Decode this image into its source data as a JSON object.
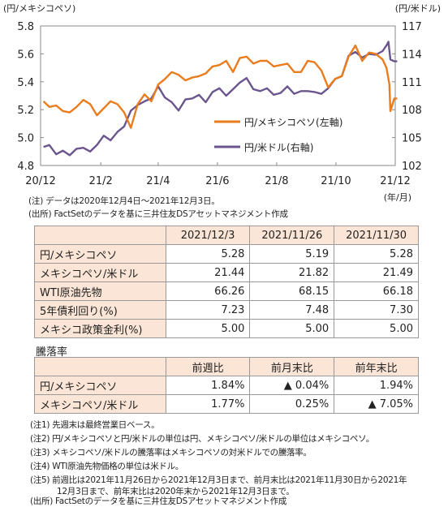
{
  "chart_data": {
    "type": "line",
    "x_axis": {
      "ticks": [
        "20/12",
        "21/2",
        "21/4",
        "21/6",
        "21/8",
        "21/10",
        "21/12"
      ],
      "unit_label": "(年/月)"
    },
    "y_left": {
      "label": "(円/メキシコペソ)",
      "range": [
        4.8,
        5.8
      ],
      "ticks": [
        "4.8",
        "5.0",
        "5.2",
        "5.4",
        "5.6",
        "5.8"
      ]
    },
    "y_right": {
      "label": "(円/米ドル)",
      "range": [
        102,
        117
      ],
      "ticks": [
        "102",
        "105",
        "108",
        "111",
        "114",
        "117"
      ]
    },
    "series": [
      {
        "name": "円/メキシコペソ(左軸)",
        "axis": "left",
        "color": "#e97d1e",
        "points": [
          [
            "2020-12-04",
            5.26
          ],
          [
            "2020-12-10",
            5.22
          ],
          [
            "2020-12-17",
            5.23
          ],
          [
            "2020-12-24",
            5.19
          ],
          [
            "2020-12-31",
            5.18
          ],
          [
            "2021-01-07",
            5.22
          ],
          [
            "2021-01-14",
            5.27
          ],
          [
            "2021-01-21",
            5.24
          ],
          [
            "2021-01-28",
            5.16
          ],
          [
            "2021-02-04",
            5.21
          ],
          [
            "2021-02-11",
            5.26
          ],
          [
            "2021-02-18",
            5.24
          ],
          [
            "2021-02-25",
            5.18
          ],
          [
            "2021-03-04",
            5.07
          ],
          [
            "2021-03-11",
            5.24
          ],
          [
            "2021-03-18",
            5.31
          ],
          [
            "2021-03-25",
            5.26
          ],
          [
            "2021-04-01",
            5.38
          ],
          [
            "2021-04-08",
            5.42
          ],
          [
            "2021-04-15",
            5.47
          ],
          [
            "2021-04-22",
            5.45
          ],
          [
            "2021-04-29",
            5.41
          ],
          [
            "2021-05-06",
            5.43
          ],
          [
            "2021-05-13",
            5.44
          ],
          [
            "2021-05-20",
            5.46
          ],
          [
            "2021-05-27",
            5.51
          ],
          [
            "2021-06-03",
            5.52
          ],
          [
            "2021-06-10",
            5.55
          ],
          [
            "2021-06-17",
            5.47
          ],
          [
            "2021-06-24",
            5.57
          ],
          [
            "2021-07-01",
            5.58
          ],
          [
            "2021-07-08",
            5.53
          ],
          [
            "2021-07-15",
            5.55
          ],
          [
            "2021-07-22",
            5.55
          ],
          [
            "2021-07-29",
            5.51
          ],
          [
            "2021-08-05",
            5.52
          ],
          [
            "2021-08-12",
            5.53
          ],
          [
            "2021-08-19",
            5.47
          ],
          [
            "2021-08-26",
            5.47
          ],
          [
            "2021-09-02",
            5.55
          ],
          [
            "2021-09-09",
            5.54
          ],
          [
            "2021-09-16",
            5.48
          ],
          [
            "2021-09-23",
            5.36
          ],
          [
            "2021-09-30",
            5.42
          ],
          [
            "2021-10-07",
            5.44
          ],
          [
            "2021-10-14",
            5.58
          ],
          [
            "2021-10-21",
            5.66
          ],
          [
            "2021-10-28",
            5.55
          ],
          [
            "2021-11-04",
            5.61
          ],
          [
            "2021-11-11",
            5.6
          ],
          [
            "2021-11-18",
            5.56
          ],
          [
            "2021-11-22",
            5.5
          ],
          [
            "2021-11-25",
            5.38
          ],
          [
            "2021-11-26",
            5.19
          ],
          [
            "2021-11-30",
            5.28
          ],
          [
            "2021-12-03",
            5.28
          ]
        ]
      },
      {
        "name": "円/米ドル(右軸)",
        "axis": "right",
        "color": "#6a558e",
        "points": [
          [
            "2020-12-04",
            104.0
          ],
          [
            "2020-12-10",
            104.2
          ],
          [
            "2020-12-17",
            103.2
          ],
          [
            "2020-12-24",
            103.6
          ],
          [
            "2020-12-31",
            103.1
          ],
          [
            "2021-01-07",
            103.8
          ],
          [
            "2021-01-14",
            103.9
          ],
          [
            "2021-01-21",
            103.5
          ],
          [
            "2021-01-28",
            104.2
          ],
          [
            "2021-02-04",
            105.2
          ],
          [
            "2021-02-11",
            104.7
          ],
          [
            "2021-02-18",
            105.6
          ],
          [
            "2021-02-25",
            106.2
          ],
          [
            "2021-03-04",
            107.9
          ],
          [
            "2021-03-11",
            108.5
          ],
          [
            "2021-03-18",
            108.9
          ],
          [
            "2021-03-25",
            109.2
          ],
          [
            "2021-04-01",
            110.5
          ],
          [
            "2021-04-08",
            109.3
          ],
          [
            "2021-04-15",
            108.8
          ],
          [
            "2021-04-22",
            107.9
          ],
          [
            "2021-04-29",
            109.1
          ],
          [
            "2021-05-06",
            109.2
          ],
          [
            "2021-05-13",
            109.6
          ],
          [
            "2021-05-20",
            108.8
          ],
          [
            "2021-05-27",
            109.9
          ],
          [
            "2021-06-03",
            110.3
          ],
          [
            "2021-06-10",
            109.5
          ],
          [
            "2021-06-17",
            110.2
          ],
          [
            "2021-06-24",
            110.9
          ],
          [
            "2021-07-01",
            111.4
          ],
          [
            "2021-07-08",
            110.2
          ],
          [
            "2021-07-15",
            110.0
          ],
          [
            "2021-07-22",
            110.3
          ],
          [
            "2021-07-29",
            109.6
          ],
          [
            "2021-08-05",
            109.8
          ],
          [
            "2021-08-12",
            110.5
          ],
          [
            "2021-08-19",
            109.7
          ],
          [
            "2021-08-26",
            110.0
          ],
          [
            "2021-09-02",
            110.0
          ],
          [
            "2021-09-09",
            109.9
          ],
          [
            "2021-09-16",
            109.7
          ],
          [
            "2021-09-23",
            110.3
          ],
          [
            "2021-09-30",
            111.3
          ],
          [
            "2021-10-07",
            111.6
          ],
          [
            "2021-10-14",
            113.8
          ],
          [
            "2021-10-21",
            114.2
          ],
          [
            "2021-10-28",
            113.6
          ],
          [
            "2021-11-04",
            114.0
          ],
          [
            "2021-11-11",
            113.9
          ],
          [
            "2021-11-18",
            114.3
          ],
          [
            "2021-11-22",
            114.9
          ],
          [
            "2021-11-24",
            115.3
          ],
          [
            "2021-11-26",
            113.4
          ],
          [
            "2021-11-30",
            113.2
          ],
          [
            "2021-12-03",
            113.2
          ]
        ]
      }
    ],
    "grid": false,
    "legend": "inside-right"
  },
  "chart_notes": [
    "(注) データは2020年12月4日～2021年12月3日。",
    "(出所) FactSetのデータを基に三井住友DSアセットマネジメント作成"
  ],
  "table1": {
    "headers": [
      "2021/12/3",
      "2021/11/26",
      "2021/11/30"
    ],
    "rows": [
      {
        "label": "円/メキシコペソ",
        "values": [
          "5.28",
          "5.19",
          "5.28"
        ]
      },
      {
        "label": "メキシコペソ/米ドル",
        "values": [
          "21.44",
          "21.82",
          "21.49"
        ]
      },
      {
        "label": "WTI原油先物",
        "values": [
          "66.26",
          "68.15",
          "66.18"
        ]
      },
      {
        "label": "5年債利回り(%)",
        "values": [
          "7.23",
          "7.48",
          "7.30"
        ]
      },
      {
        "label": "メキシコ政策金利(%)",
        "values": [
          "5.00",
          "5.00",
          "5.00"
        ]
      }
    ]
  },
  "table2": {
    "caption": "騰落率",
    "headers": [
      "前週比",
      "前月末比",
      "前年末比"
    ],
    "rows": [
      {
        "label": "円/メキシコペソ",
        "values": [
          "1.84%",
          "▲ 0.04%",
          "1.94%"
        ]
      },
      {
        "label": "メキシコペソ/米ドル",
        "values": [
          "1.77%",
          "0.25%",
          "▲ 7.05%"
        ]
      }
    ]
  },
  "footnotes": [
    "(注1) 先週末は最終営業日ベース。",
    "(注2) 円/メキシコペソと円/米ドルの単位は円、メキシコペソ/米ドルの単位はメキシコペソ。",
    "(注3) メキシコペソ/米ドルの騰落率はメキシコペソの対米ドルでの騰落率。",
    "(注4) WTI原油先物価格の単位は米ドル。",
    "(注5) 前週比は2021年11月26日から2021年12月3日まで、前月末比は2021年11月30日から2021年",
    "12月3日まで、前年末比は2020年末から2021年12月3日まで。",
    "(出所) FactSetのデータを基に三井住友DSアセットマネジメント作成"
  ]
}
